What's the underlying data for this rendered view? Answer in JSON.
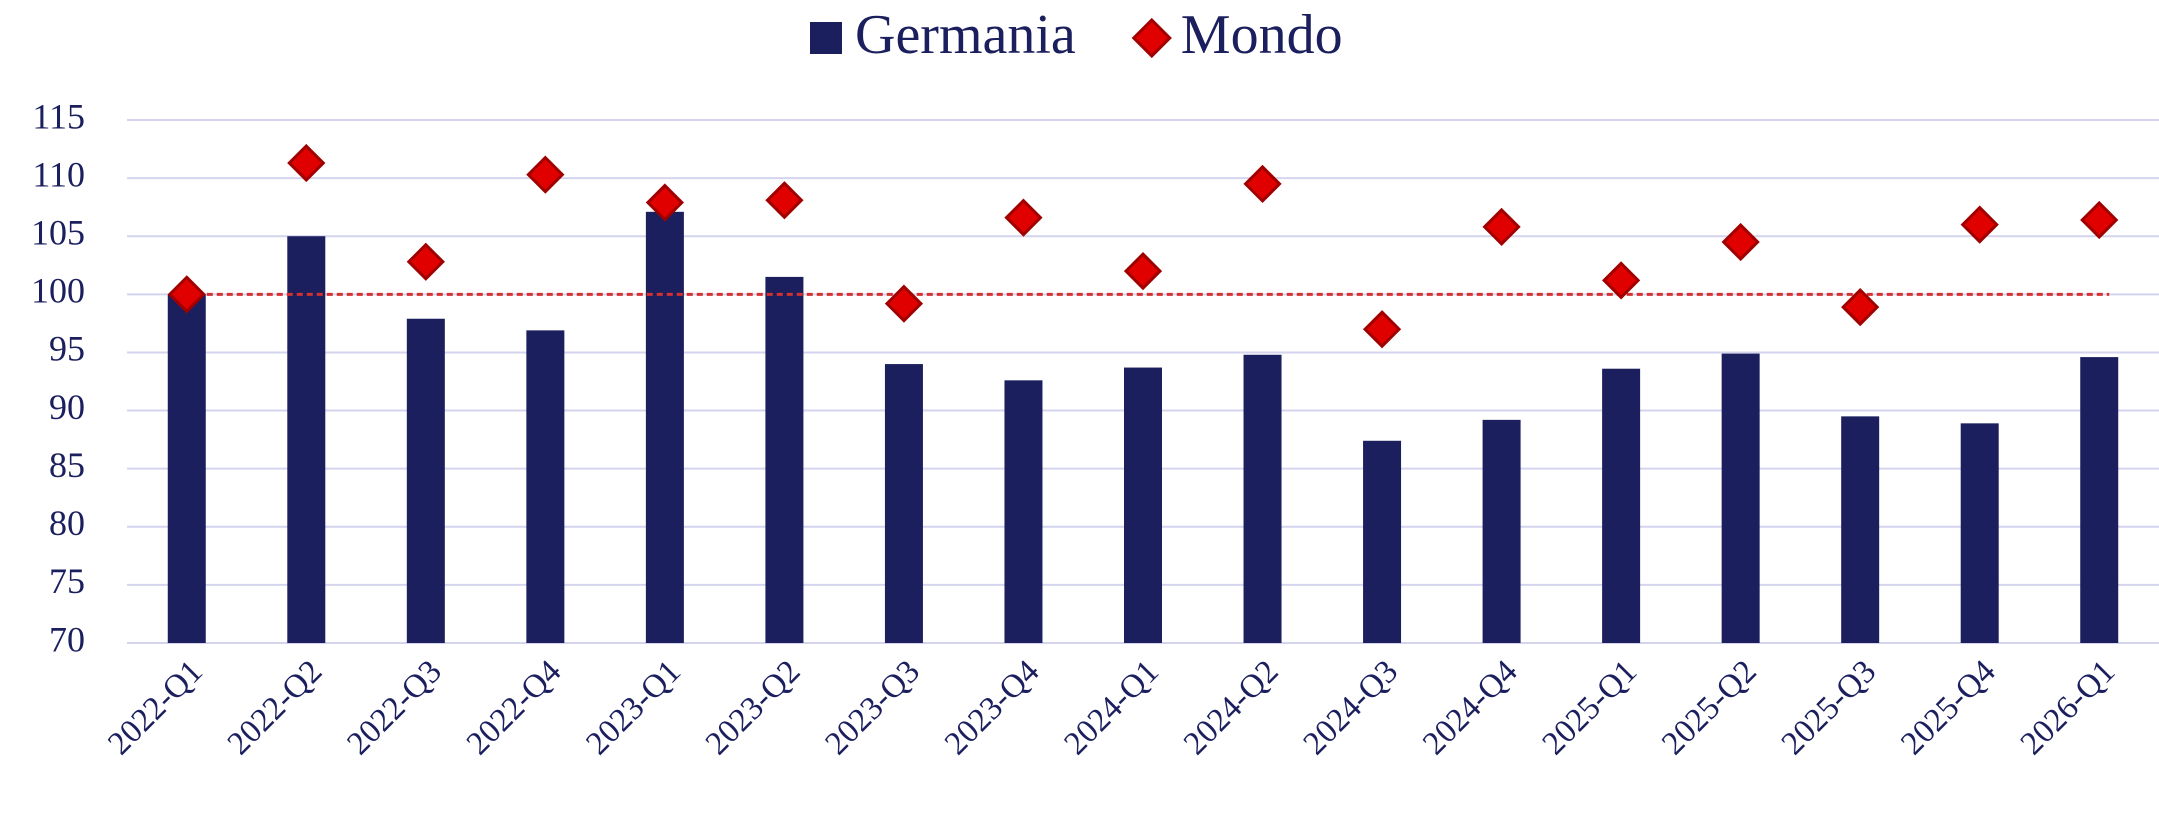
{
  "chart_data": {
    "type": "bar",
    "categories": [
      "2022-Q1",
      "2022-Q2",
      "2022-Q3",
      "2022-Q4",
      "2023-Q1",
      "2023-Q2",
      "2023-Q3",
      "2023-Q4",
      "2024-Q1",
      "2024-Q2",
      "2024-Q3",
      "2024-Q4",
      "2025-Q1",
      "2025-Q2",
      "2025-Q3",
      "2025-Q4",
      "2026-Q1"
    ],
    "series": [
      {
        "name": "Germania",
        "type": "bar",
        "color": "#1b1f5e",
        "values": [
          100,
          105,
          97.9,
          96.9,
          107.1,
          101.5,
          94,
          92.6,
          93.7,
          94.8,
          87.4,
          89.2,
          93.6,
          94.9,
          89.5,
          88.9,
          94.6
        ]
      },
      {
        "name": "Mondo",
        "type": "scatter",
        "color": "#e00000",
        "values": [
          100,
          111.3,
          102.8,
          110.3,
          107.9,
          108.1,
          99.2,
          106.6,
          102,
          109.5,
          97,
          105.8,
          101.2,
          104.5,
          98.9,
          106,
          106.4
        ]
      }
    ],
    "reference_line": {
      "value": 100,
      "color": "#d43030"
    },
    "ylim": [
      70,
      115
    ],
    "yticks": [
      70,
      75,
      80,
      85,
      90,
      95,
      100,
      105,
      110,
      115
    ],
    "grid": true,
    "legend": "top"
  }
}
